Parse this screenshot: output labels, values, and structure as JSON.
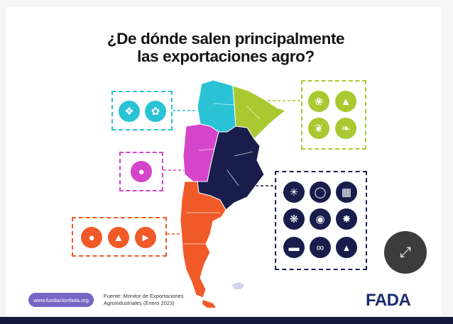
{
  "title": {
    "line1": "¿De dónde salen principalmente",
    "line2": "las exportaciones agro?"
  },
  "colors": {
    "cyan": "#2ac3d6",
    "green": "#a8c930",
    "magenta": "#d445c9",
    "navy": "#181d4b",
    "orange": "#f05a28"
  },
  "regions": [
    {
      "color": "cyan",
      "icons": [
        "lemon-icon",
        "cotton-icon"
      ]
    },
    {
      "color": "green",
      "icons": [
        "leaf-icon",
        "trees-icon",
        "tobacco-leaf-icon",
        "tea-leaf-icon"
      ]
    },
    {
      "color": "magenta",
      "icons": [
        "grapes-icon"
      ]
    },
    {
      "color": "navy",
      "icons": [
        "sunflower-icon",
        "soy-icon",
        "corn-icon",
        "wheat-icon",
        "cow-icon",
        "grain-icon",
        "cattle-icon",
        "peanut-icon",
        "chicken-icon"
      ]
    },
    {
      "color": "orange",
      "icons": [
        "apple-icon",
        "pear-icon",
        "fish-icon"
      ]
    }
  ],
  "footer": {
    "website": "www.fundacionfada.org",
    "source_line1": "Fuente: Monitor de Exportaciones",
    "source_line2": "Agroindustriales (Enero 2023)",
    "logo": "FADA"
  },
  "expand_icon": "expand-arrows-icon"
}
